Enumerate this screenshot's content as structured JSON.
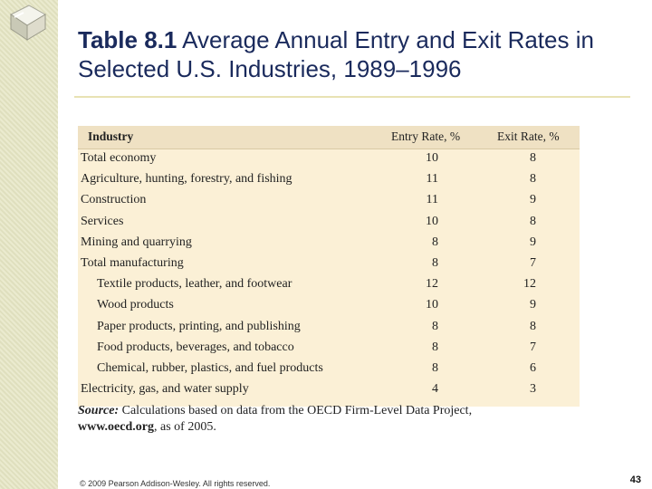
{
  "title": {
    "number": "Table 8.1",
    "text": "Average Annual Entry and Exit Rates in Selected U.S. Industries, 1989–1996"
  },
  "table": {
    "headers": {
      "industry": "Industry",
      "entry": "Entry Rate, %",
      "exit": "Exit Rate, %"
    },
    "rows": [
      {
        "industry": "Total economy",
        "entry": "10",
        "exit": "8"
      },
      {
        "industry": "Agriculture, hunting, forestry, and fishing",
        "entry": "11",
        "exit": "8"
      },
      {
        "industry": "Construction",
        "entry": "11",
        "exit": "9"
      },
      {
        "industry": "Services",
        "entry": "10",
        "exit": "8"
      },
      {
        "industry": "Mining and quarrying",
        "entry": "8",
        "exit": "9"
      },
      {
        "industry": "Total manufacturing",
        "entry": "8",
        "exit": "7"
      },
      {
        "industry": "Textile products, leather, and footwear",
        "entry": "12",
        "exit": "12"
      },
      {
        "industry": "Wood products",
        "entry": "10",
        "exit": "9"
      },
      {
        "industry": "Paper products, printing, and publishing",
        "entry": "8",
        "exit": "8"
      },
      {
        "industry": "Food products, beverages, and tobacco",
        "entry": "8",
        "exit": "7"
      },
      {
        "industry": "Chemical, rubber, plastics, and fuel products",
        "entry": "8",
        "exit": "6"
      },
      {
        "industry": "Electricity, gas, and water supply",
        "entry": "4",
        "exit": "3"
      }
    ]
  },
  "source": {
    "label": "Source:",
    "text": "Calculations based on data from the OECD Firm-Level Data Project,",
    "url": "www.oecd.org",
    "suffix": ", as of 2005."
  },
  "footer": {
    "copyright": "© 2009 Pearson Addison-Wesley. All rights reserved.",
    "page_number": "43"
  },
  "colors": {
    "title": "#1a2a5c",
    "table_bg": "#fbf0d6",
    "header_bg": "#efe1c3",
    "stripe": "#e6e6c4"
  }
}
